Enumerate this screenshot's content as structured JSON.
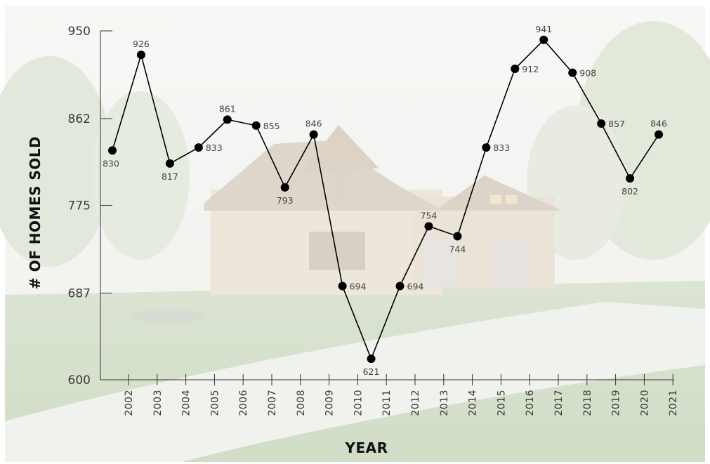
{
  "chart_data": {
    "type": "line",
    "xlabel": "YEAR",
    "ylabel": "# OF HOMES SOLD",
    "ylim": [
      600,
      950
    ],
    "yticks": [
      600,
      687,
      775,
      862,
      950
    ],
    "categories": [
      "2002",
      "2003",
      "2004",
      "2005",
      "2006",
      "2007",
      "2008",
      "2009",
      "2010",
      "2011",
      "2012",
      "2013",
      "2014",
      "2015",
      "2016",
      "2017",
      "2018",
      "2019",
      "2020",
      "2021"
    ],
    "points": [
      {
        "label": "830",
        "value": 830
      },
      {
        "label": "926",
        "value": 926
      },
      {
        "label": "817",
        "value": 817
      },
      {
        "label": "833",
        "value": 833
      },
      {
        "label": "861",
        "value": 861
      },
      {
        "label": "855",
        "value": 855
      },
      {
        "label": "793",
        "value": 793
      },
      {
        "label": "846",
        "value": 846
      },
      {
        "label": "694",
        "value": 694
      },
      {
        "label": "621",
        "value": 621
      },
      {
        "label": "694",
        "value": 694
      },
      {
        "label": "754",
        "value": 754
      },
      {
        "label": "744",
        "value": 744
      },
      {
        "label": "833",
        "value": 833
      },
      {
        "label": "912",
        "value": 912
      },
      {
        "label": "941",
        "value": 941
      },
      {
        "label": "908",
        "value": 908
      },
      {
        "label": "857",
        "value": 857
      },
      {
        "label": "802",
        "value": 802
      },
      {
        "label": "846",
        "value": 846
      }
    ],
    "grid": false,
    "line_color": "#000000",
    "marker_color": "#000000"
  },
  "background": {
    "description_icon": "house-photo-background",
    "sky_color": "#f3f4f1",
    "lawn_color": "#cfdcc2",
    "house_color": "#eadfcf"
  }
}
